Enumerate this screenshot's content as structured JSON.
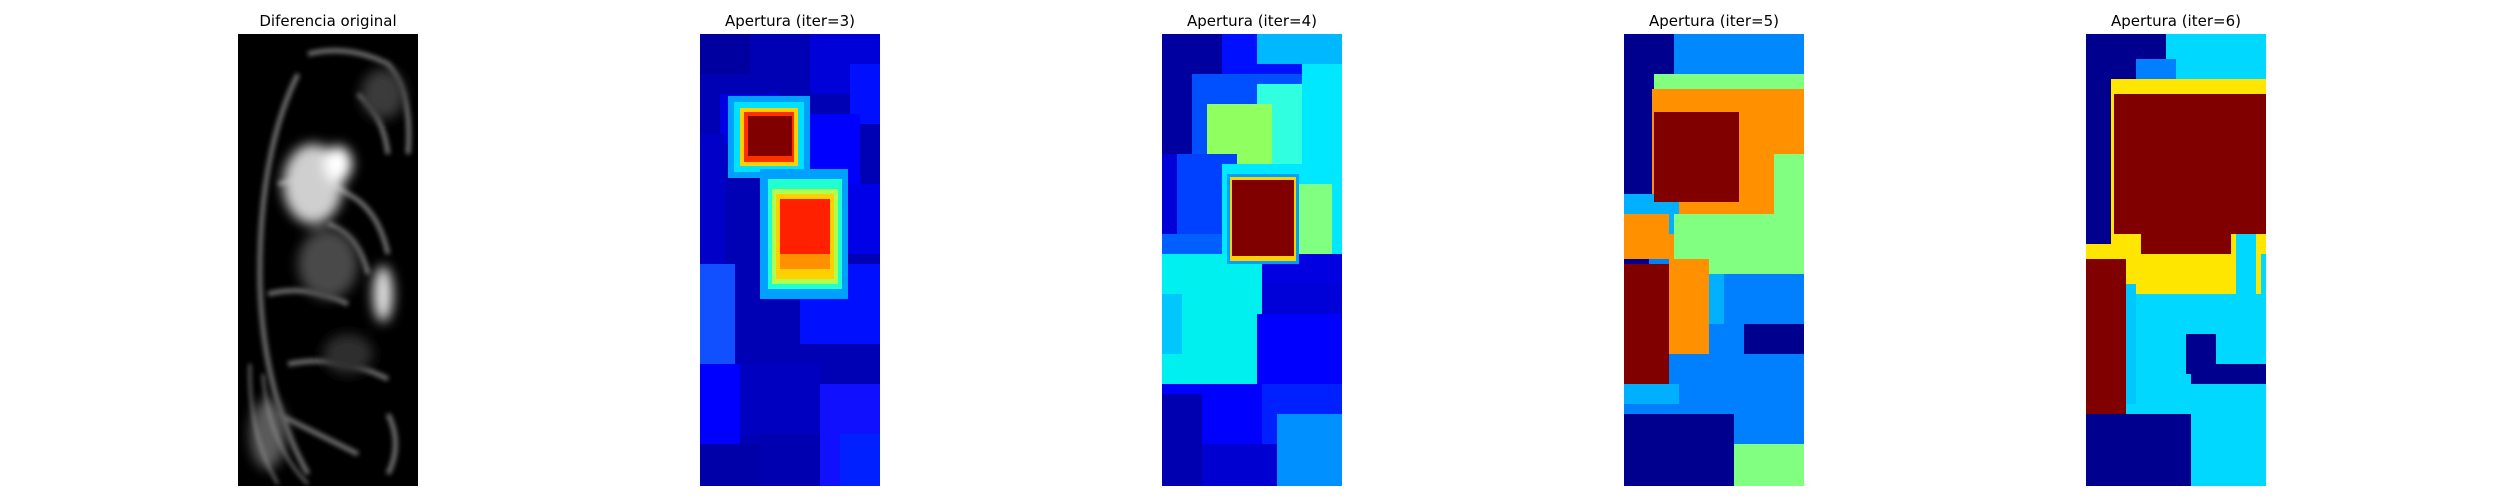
{
  "figure": {
    "panels": [
      {
        "title": "Diferencia original",
        "colormap": "gray"
      },
      {
        "title": "Apertura (iter=3)",
        "colormap": "jet"
      },
      {
        "title": "Apertura (iter=4)",
        "colormap": "jet"
      },
      {
        "title": "Apertura (iter=5)",
        "colormap": "jet"
      },
      {
        "title": "Apertura (iter=6)",
        "colormap": "jet"
      }
    ]
  },
  "colors": {
    "jet_dark_blue": "#00008f",
    "jet_blue": "#0000ff",
    "jet_mid_blue": "#0080ff",
    "jet_cyan": "#00ffff",
    "jet_green": "#80ff80",
    "jet_yellow": "#ffea00",
    "jet_orange": "#ff9000",
    "jet_red": "#ff2000",
    "jet_dark_red": "#800000"
  }
}
